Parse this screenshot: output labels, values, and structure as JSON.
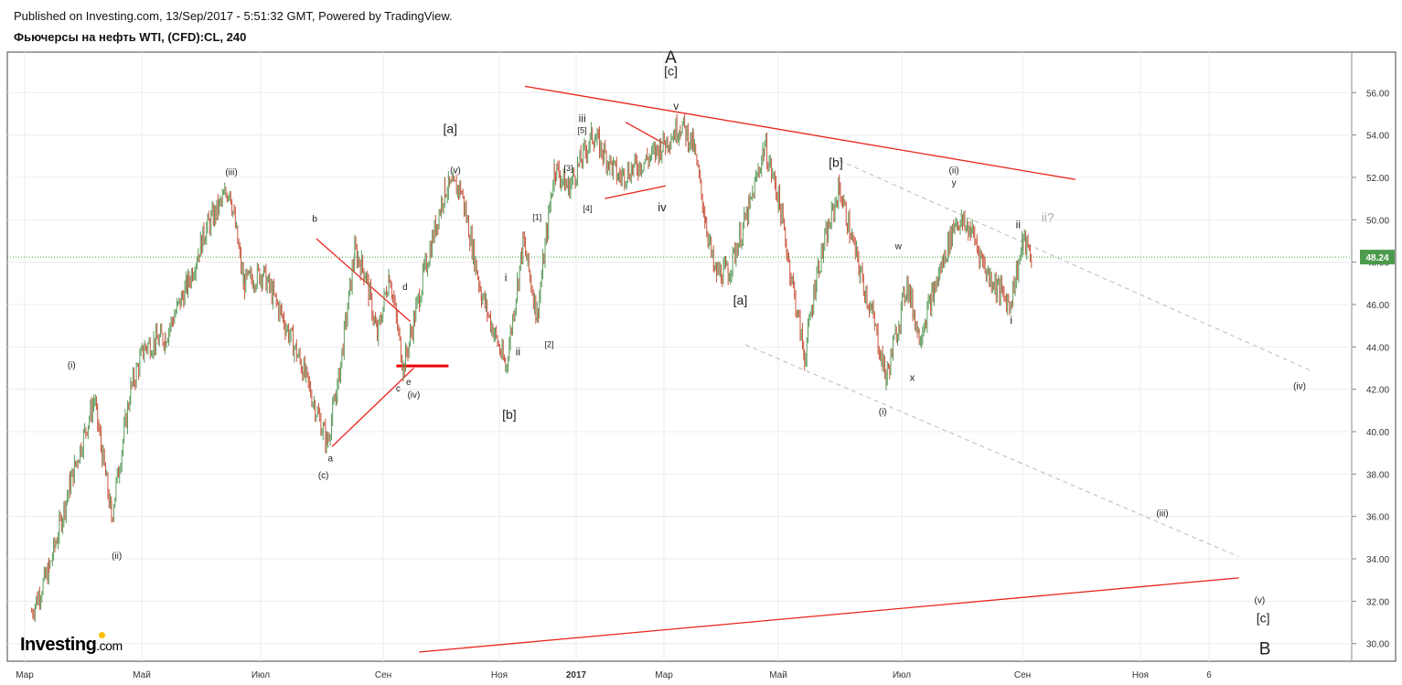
{
  "header": {
    "published": "Published on Investing.com, 13/Sep/2017 - 5:51:32 GMT, Powered by TradingView.",
    "symbol": "Фьючерсы на нефть WTI, (CFD):CL, 240"
  },
  "logo": {
    "main": "Investing",
    "suffix": ".com"
  },
  "chart_data": {
    "type": "line",
    "title": "Фьючерсы на нефть WTI, (CFD):CL, 240",
    "ylim": [
      29.5,
      57.5
    ],
    "y_ticks": [
      "30.00",
      "32.00",
      "34.00",
      "36.00",
      "38.00",
      "40.00",
      "42.00",
      "44.00",
      "46.00",
      "48.00",
      "50.00",
      "52.00",
      "54.00",
      "56.00"
    ],
    "x_ticks": [
      "Мар",
      "Май",
      "Июл",
      "Сен",
      "Ноя",
      "2017",
      "Мар",
      "Май",
      "Июл",
      "Сен",
      "Ноя",
      "6"
    ],
    "x_ticks_bold": [
      false,
      false,
      false,
      false,
      false,
      true,
      false,
      false,
      false,
      false,
      false,
      false
    ],
    "last_price": "48.24",
    "price_path": [
      [
        "2016-02-15",
        31.5
      ],
      [
        "2016-02-25",
        33.5
      ],
      [
        "2016-03-08",
        37.5
      ],
      [
        "2016-03-22",
        41.5
      ],
      [
        "2016-04-01",
        36.0
      ],
      [
        "2016-04-12",
        42.0
      ],
      [
        "2016-04-20",
        44.0
      ],
      [
        "2016-05-02",
        44.5
      ],
      [
        "2016-05-15",
        47.0
      ],
      [
        "2016-05-25",
        49.5
      ],
      [
        "2016-06-08",
        51.5
      ],
      [
        "2016-06-16",
        47.0
      ],
      [
        "2016-06-27",
        47.5
      ],
      [
        "2016-07-08",
        45.5
      ],
      [
        "2016-07-20",
        43.0
      ],
      [
        "2016-08-03",
        39.5
      ],
      [
        "2016-08-09",
        42.0
      ],
      [
        "2016-08-19",
        48.5
      ],
      [
        "2016-08-25",
        47.5
      ],
      [
        "2016-09-01",
        44.5
      ],
      [
        "2016-09-08",
        47.5
      ],
      [
        "2016-09-16",
        43.0
      ],
      [
        "2016-09-28",
        47.5
      ],
      [
        "2016-10-10",
        51.5
      ],
      [
        "2016-10-19",
        51.5
      ],
      [
        "2016-10-31",
        46.5
      ],
      [
        "2016-11-14",
        43.0
      ],
      [
        "2016-11-24",
        49.0
      ],
      [
        "2016-12-02",
        45.5
      ],
      [
        "2016-12-12",
        52.5
      ],
      [
        "2016-12-20",
        51.5
      ],
      [
        "2017-01-03",
        54.0
      ],
      [
        "2017-01-18",
        52.0
      ],
      [
        "2017-02-06",
        53.0
      ],
      [
        "2017-02-23",
        54.5
      ],
      [
        "2017-03-02",
        53.5
      ],
      [
        "2017-03-09",
        50.0
      ],
      [
        "2017-03-14",
        47.5
      ],
      [
        "2017-03-22",
        47.5
      ],
      [
        "2017-04-03",
        50.5
      ],
      [
        "2017-04-12",
        53.5
      ],
      [
        "2017-04-20",
        51.0
      ],
      [
        "2017-05-05",
        43.5
      ],
      [
        "2017-05-12",
        47.5
      ],
      [
        "2017-05-25",
        51.5
      ],
      [
        "2017-06-06",
        47.5
      ],
      [
        "2017-06-13",
        45.5
      ],
      [
        "2017-06-21",
        42.5
      ],
      [
        "2017-07-03",
        47.0
      ],
      [
        "2017-07-10",
        44.5
      ],
      [
        "2017-07-18",
        46.5
      ],
      [
        "2017-07-31",
        50.0
      ],
      [
        "2017-08-09",
        49.5
      ],
      [
        "2017-08-18",
        47.5
      ],
      [
        "2017-08-31",
        46.0
      ],
      [
        "2017-09-08",
        49.0
      ],
      [
        "2017-09-13",
        48.24
      ]
    ],
    "trendlines": [
      {
        "color": "#e8241c",
        "from": [
          "2016-11-25",
          56.3
        ],
        "to": [
          "2017-10-08",
          51.9
        ]
      },
      {
        "color": "#e8241c",
        "from": [
          "2016-09-25",
          29.6
        ],
        "to": [
          "2018-01-10",
          33.1
        ]
      },
      {
        "color": "#e8241c",
        "from": [
          "2016-08-06",
          39.3
        ],
        "to": [
          "2016-09-22",
          43.0
        ]
      },
      {
        "color": "#e8241c",
        "from": [
          "2016-07-28",
          49.1
        ],
        "to": [
          "2016-09-20",
          45.2
        ]
      },
      {
        "color": "#e8241c",
        "from": [
          "2017-01-22",
          54.6
        ],
        "to": [
          "2017-02-13",
          53.6
        ]
      },
      {
        "color": "#e8241c",
        "from": [
          "2017-01-10",
          51.0
        ],
        "to": [
          "2017-02-14",
          51.6
        ]
      },
      {
        "color": "#ccccdd",
        "from": [
          "2017-05-25",
          52.8
        ],
        "to": [
          "2018-02-20",
          42.9
        ]
      },
      {
        "color": "#ccccdd",
        "from": [
          "2017-04-01",
          44.1
        ],
        "to": [
          "2018-01-10",
          34.1
        ]
      }
    ],
    "support_line": {
      "color": "#ee0000",
      "from": [
        "2016-09-12",
        43.1
      ],
      "to": [
        "2016-10-12",
        43.1
      ]
    },
    "wave_labels": [
      {
        "text": "(i)",
        "date": "2016-03-09",
        "y": 43.0,
        "size": 10,
        "grey": false
      },
      {
        "text": "(ii)",
        "date": "2016-04-04",
        "y": 34.0,
        "size": 10,
        "grey": false
      },
      {
        "text": "(iii)",
        "date": "2016-06-09",
        "y": 52.1,
        "size": 10,
        "grey": false
      },
      {
        "text": "b",
        "date": "2016-07-27",
        "y": 49.9,
        "size": 10,
        "grey": false
      },
      {
        "text": "a",
        "date": "2016-08-05",
        "y": 38.6,
        "size": 10,
        "grey": false
      },
      {
        "text": "(c)",
        "date": "2016-08-01",
        "y": 37.8,
        "size": 10,
        "grey": false
      },
      {
        "text": "d",
        "date": "2016-09-17",
        "y": 46.7,
        "size": 10,
        "grey": false
      },
      {
        "text": "c",
        "date": "2016-09-13",
        "y": 41.9,
        "size": 10,
        "grey": false
      },
      {
        "text": "e",
        "date": "2016-09-19",
        "y": 42.2,
        "size": 10,
        "grey": false
      },
      {
        "text": "(iv)",
        "date": "2016-09-22",
        "y": 41.6,
        "size": 10,
        "grey": false
      },
      {
        "text": "(v)",
        "date": "2016-10-16",
        "y": 52.2,
        "size": 10,
        "grey": false
      },
      {
        "text": "[a]",
        "date": "2016-10-13",
        "y": 54.1,
        "size": 14,
        "grey": false
      },
      {
        "text": "i",
        "date": "2016-11-14",
        "y": 47.1,
        "size": 12,
        "grey": false
      },
      {
        "text": "ii",
        "date": "2016-11-21",
        "y": 43.6,
        "size": 12,
        "grey": false
      },
      {
        "text": "[b]",
        "date": "2016-11-16",
        "y": 40.6,
        "size": 14,
        "grey": false
      },
      {
        "text": "[1]",
        "date": "2016-12-02",
        "y": 50.0,
        "size": 9,
        "grey": false
      },
      {
        "text": "[2]",
        "date": "2016-12-09",
        "y": 44.0,
        "size": 9,
        "grey": false
      },
      {
        "text": "[3]",
        "date": "2016-12-20",
        "y": 52.3,
        "size": 9,
        "grey": false
      },
      {
        "text": "[4]",
        "date": "2016-12-31",
        "y": 50.4,
        "size": 9,
        "grey": false
      },
      {
        "text": "[5]",
        "date": "2016-12-28",
        "y": 54.1,
        "size": 9,
        "grey": false
      },
      {
        "text": "iii",
        "date": "2016-12-28",
        "y": 54.6,
        "size": 12,
        "grey": false
      },
      {
        "text": "iv",
        "date": "2017-02-12",
        "y": 50.4,
        "size": 13,
        "grey": false
      },
      {
        "text": "v",
        "date": "2017-02-20",
        "y": 55.2,
        "size": 12,
        "grey": false
      },
      {
        "text": "[c]",
        "date": "2017-02-17",
        "y": 56.8,
        "size": 14,
        "grey": false
      },
      {
        "text": "A",
        "date": "2017-02-17",
        "y": 57.4,
        "size": 19,
        "grey": false
      },
      {
        "text": "[a]",
        "date": "2017-03-29",
        "y": 46.0,
        "size": 14,
        "grey": false
      },
      {
        "text": "[b]",
        "date": "2017-05-23",
        "y": 52.5,
        "size": 14,
        "grey": false
      },
      {
        "text": "w",
        "date": "2017-06-28",
        "y": 48.6,
        "size": 10,
        "grey": false
      },
      {
        "text": "(i)",
        "date": "2017-06-19",
        "y": 40.8,
        "size": 10,
        "grey": false
      },
      {
        "text": "x",
        "date": "2017-07-06",
        "y": 42.4,
        "size": 11,
        "grey": false
      },
      {
        "text": "(ii)",
        "date": "2017-07-30",
        "y": 52.2,
        "size": 10,
        "grey": false
      },
      {
        "text": "y",
        "date": "2017-07-30",
        "y": 51.6,
        "size": 10,
        "grey": false
      },
      {
        "text": "ii",
        "date": "2017-09-05",
        "y": 49.6,
        "size": 12,
        "grey": false
      },
      {
        "text": "ii?",
        "date": "2017-09-22",
        "y": 49.9,
        "size": 14,
        "grey": true
      },
      {
        "text": "i",
        "date": "2017-09-01",
        "y": 45.1,
        "size": 12,
        "grey": false
      },
      {
        "text": "(iii)",
        "date": "2017-11-27",
        "y": 36.0,
        "size": 10,
        "grey": false
      },
      {
        "text": "(iv)",
        "date": "2018-02-14",
        "y": 42.0,
        "size": 10,
        "grey": false
      },
      {
        "text": "(v)",
        "date": "2018-01-22",
        "y": 31.9,
        "size": 10,
        "grey": false
      },
      {
        "text": "[c]",
        "date": "2018-01-24",
        "y": 31.0,
        "size": 14,
        "grey": false
      },
      {
        "text": "B",
        "date": "2018-01-25",
        "y": 29.5,
        "size": 19,
        "grey": false
      }
    ]
  }
}
